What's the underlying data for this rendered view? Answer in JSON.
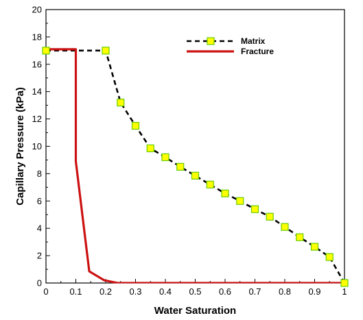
{
  "chart_data": {
    "type": "line",
    "xlabel": "Water Saturation",
    "ylabel": "Capillary Pressure (kPa)",
    "xlim": [
      0,
      1
    ],
    "ylim": [
      0,
      20
    ],
    "x_ticks": [
      0,
      0.1,
      0.2,
      0.3,
      0.4,
      0.5,
      0.6,
      0.7,
      0.8,
      0.9,
      1
    ],
    "x_tick_labels": [
      "0",
      "0.1",
      "0.2",
      "0.3",
      "0.4",
      "0.5",
      "0.6",
      "0.7",
      "0.8",
      "0.9",
      "1"
    ],
    "y_ticks": [
      0,
      2,
      4,
      6,
      8,
      10,
      12,
      14,
      16,
      18,
      20
    ],
    "y_tick_labels": [
      "0",
      "2",
      "4",
      "6",
      "8",
      "10",
      "12",
      "14",
      "16",
      "18",
      "20"
    ],
    "grid": false,
    "legend_position": "top-right",
    "series": [
      {
        "name": "Matrix",
        "color": "#000000",
        "line_style": "dashed",
        "marker": "square",
        "marker_fill": "#ffff00",
        "marker_edge": "#66cc00",
        "x": [
          0.0,
          0.2,
          0.25,
          0.3,
          0.35,
          0.4,
          0.45,
          0.5,
          0.55,
          0.6,
          0.65,
          0.7,
          0.75,
          0.8,
          0.85,
          0.9,
          0.95,
          1.0
        ],
        "y": [
          17.0,
          17.0,
          13.2,
          11.5,
          9.85,
          9.2,
          8.5,
          7.85,
          7.2,
          6.55,
          6.0,
          5.4,
          4.85,
          4.1,
          3.35,
          2.65,
          1.9,
          0.0
        ]
      },
      {
        "name": "Fracture",
        "color": "#cc1111",
        "line_style": "solid",
        "marker": "none",
        "x": [
          0.0,
          0.1,
          0.1,
          0.145,
          0.195,
          0.24,
          1.0
        ],
        "y": [
          17.1,
          17.1,
          8.9,
          0.85,
          0.2,
          0.0,
          0.0
        ]
      }
    ]
  }
}
